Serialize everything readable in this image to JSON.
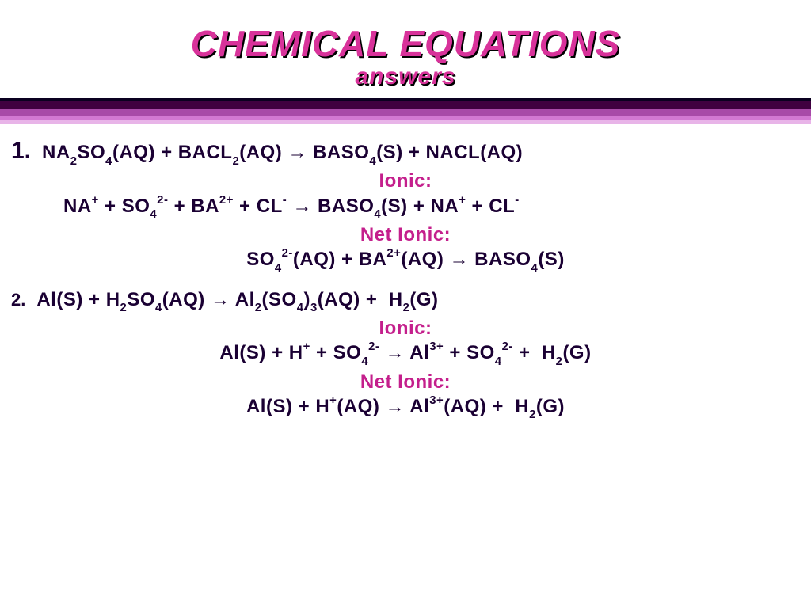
{
  "colors": {
    "magenta": "#d8329a",
    "equation_text": "#1a0033",
    "label_text": "#c41f8c",
    "listnum": "#1a0033",
    "stripe1": "#400040",
    "stripe2": "#a84aa8",
    "stripe3": "#d278d2",
    "stripe4": "#e8b4e8",
    "border_color": "#0a0020"
  },
  "title": {
    "main": "CHEMICAL EQUATIONS",
    "main_fontsize": 46,
    "sub": "answers",
    "sub_fontsize": 30,
    "color": "#d8329a"
  },
  "stripes": {
    "heights": [
      4,
      10,
      8,
      6,
      4
    ],
    "colors": [
      "#0a0020",
      "#400040",
      "#a84aa8",
      "#d278d2",
      "#e8b4e8"
    ]
  },
  "content": {
    "eq_fontsize": 24,
    "label_fontsize": 24,
    "listnum_fontsize": 30,
    "listnum2_fontsize": 22
  },
  "eq1": {
    "num": "1.",
    "molecular_html": "NA<span class='sub'>2</span>SO<span class='sub'>4</span>(AQ) + BACL<span class='sub'>2</span>(AQ) <span class='arrow'>&#8594;</span> BASO<span class='sub'>4</span>(S) + NACL(AQ)",
    "ionic_label": "Ionic:",
    "ionic_html": "NA<span class='sup'>+</span> + SO<span class='sub'>4</span><span class='sup'>2-</span> + BA<span class='sup'>2+</span> + CL<span class='sup'>-</span> <span class='arrow'>&#8594;</span> BASO<span class='sub'>4</span>(S) + NA<span class='sup'>+</span> + CL<span class='sup'>-</span>",
    "net_label": "Net Ionic:",
    "net_html": "SO<span class='sub'>4</span><span class='sup'>2-</span>(AQ) + BA<span class='sup'>2+</span>(AQ) <span class='arrow'>&#8594;</span> BASO<span class='sub'>4</span>(S)"
  },
  "eq2": {
    "num": "2.",
    "molecular_html": "Al(S) + H<span class='sub'>2</span>SO<span class='sub'>4</span>(AQ) <span class='arrow'>&#8594;</span> Al<span class='sub'>2</span>(SO<span class='sub'>4</span>)<span class='sub'>3</span>(AQ) +&nbsp;&nbsp;H<span class='sub'>2</span>(G)",
    "ionic_label": "Ionic:",
    "ionic_html": "Al(S) + H<span class='sup'>+</span> + SO<span class='sub'>4</span><span class='sup'>2-</span> <span class='arrow'>&#8594;</span> Al<span class='sup'>3+</span> + SO<span class='sub'>4</span><span class='sup'>2-</span> +&nbsp;&nbsp;H<span class='sub'>2</span>(G)",
    "net_label": "Net Ionic:",
    "net_html": "Al(S) + H<span class='sup'>+</span>(AQ) <span class='arrow'>&#8594;</span> Al<span class='sup'>3+</span>(AQ) +&nbsp;&nbsp;H<span class='sub'>2</span>(G)"
  }
}
